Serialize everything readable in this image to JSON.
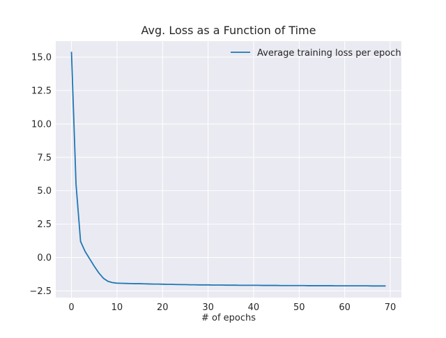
{
  "chart_data": {
    "type": "line",
    "title": "Avg. Loss as a Function of Time",
    "xlabel": "# of epochs",
    "ylabel": "",
    "xlim": [
      -3.45,
      72.45
    ],
    "ylim": [
      -3.0,
      16.2
    ],
    "xticks": [
      0,
      10,
      20,
      30,
      40,
      50,
      60,
      70
    ],
    "yticks": [
      -2.5,
      0.0,
      2.5,
      5.0,
      7.5,
      10.0,
      12.5,
      15.0
    ],
    "xtick_labels": [
      "0",
      "10",
      "20",
      "30",
      "40",
      "50",
      "60",
      "70"
    ],
    "ytick_labels": [
      "−2.5",
      "0.0",
      "2.5",
      "5.0",
      "7.5",
      "10.0",
      "12.5",
      "15.0"
    ],
    "grid": true,
    "legend": {
      "position": "top-right"
    },
    "colors": {
      "line": "#1f77b4",
      "plot_bg": "#eaeaf2",
      "grid": "#ffffff"
    },
    "series": [
      {
        "name": "Average training loss per epoch",
        "x": [
          0,
          1,
          2,
          3,
          4,
          5,
          6,
          7,
          8,
          9,
          10,
          11,
          12,
          13,
          14,
          15,
          16,
          17,
          18,
          19,
          20,
          21,
          22,
          23,
          24,
          25,
          26,
          27,
          28,
          29,
          30,
          31,
          32,
          33,
          34,
          35,
          36,
          37,
          38,
          39,
          40,
          41,
          42,
          43,
          44,
          45,
          46,
          47,
          48,
          49,
          50,
          51,
          52,
          53,
          54,
          55,
          56,
          57,
          58,
          59,
          60,
          61,
          62,
          63,
          64,
          65,
          66,
          67,
          68,
          69
        ],
        "y": [
          15.4,
          5.5,
          1.2,
          0.45,
          -0.1,
          -0.65,
          -1.15,
          -1.55,
          -1.78,
          -1.88,
          -1.92,
          -1.93,
          -1.94,
          -1.95,
          -1.96,
          -1.96,
          -1.97,
          -1.98,
          -1.99,
          -1.99,
          -2.0,
          -2.01,
          -2.01,
          -2.02,
          -2.03,
          -2.03,
          -2.04,
          -2.04,
          -2.05,
          -2.05,
          -2.05,
          -2.06,
          -2.06,
          -2.06,
          -2.07,
          -2.07,
          -2.07,
          -2.08,
          -2.08,
          -2.08,
          -2.08,
          -2.08,
          -2.09,
          -2.09,
          -2.09,
          -2.09,
          -2.1,
          -2.1,
          -2.1,
          -2.1,
          -2.1,
          -2.1,
          -2.11,
          -2.11,
          -2.11,
          -2.11,
          -2.11,
          -2.11,
          -2.12,
          -2.12,
          -2.12,
          -2.12,
          -2.12,
          -2.12,
          -2.12,
          -2.12,
          -2.13,
          -2.13,
          -2.13,
          -2.13
        ]
      }
    ]
  }
}
